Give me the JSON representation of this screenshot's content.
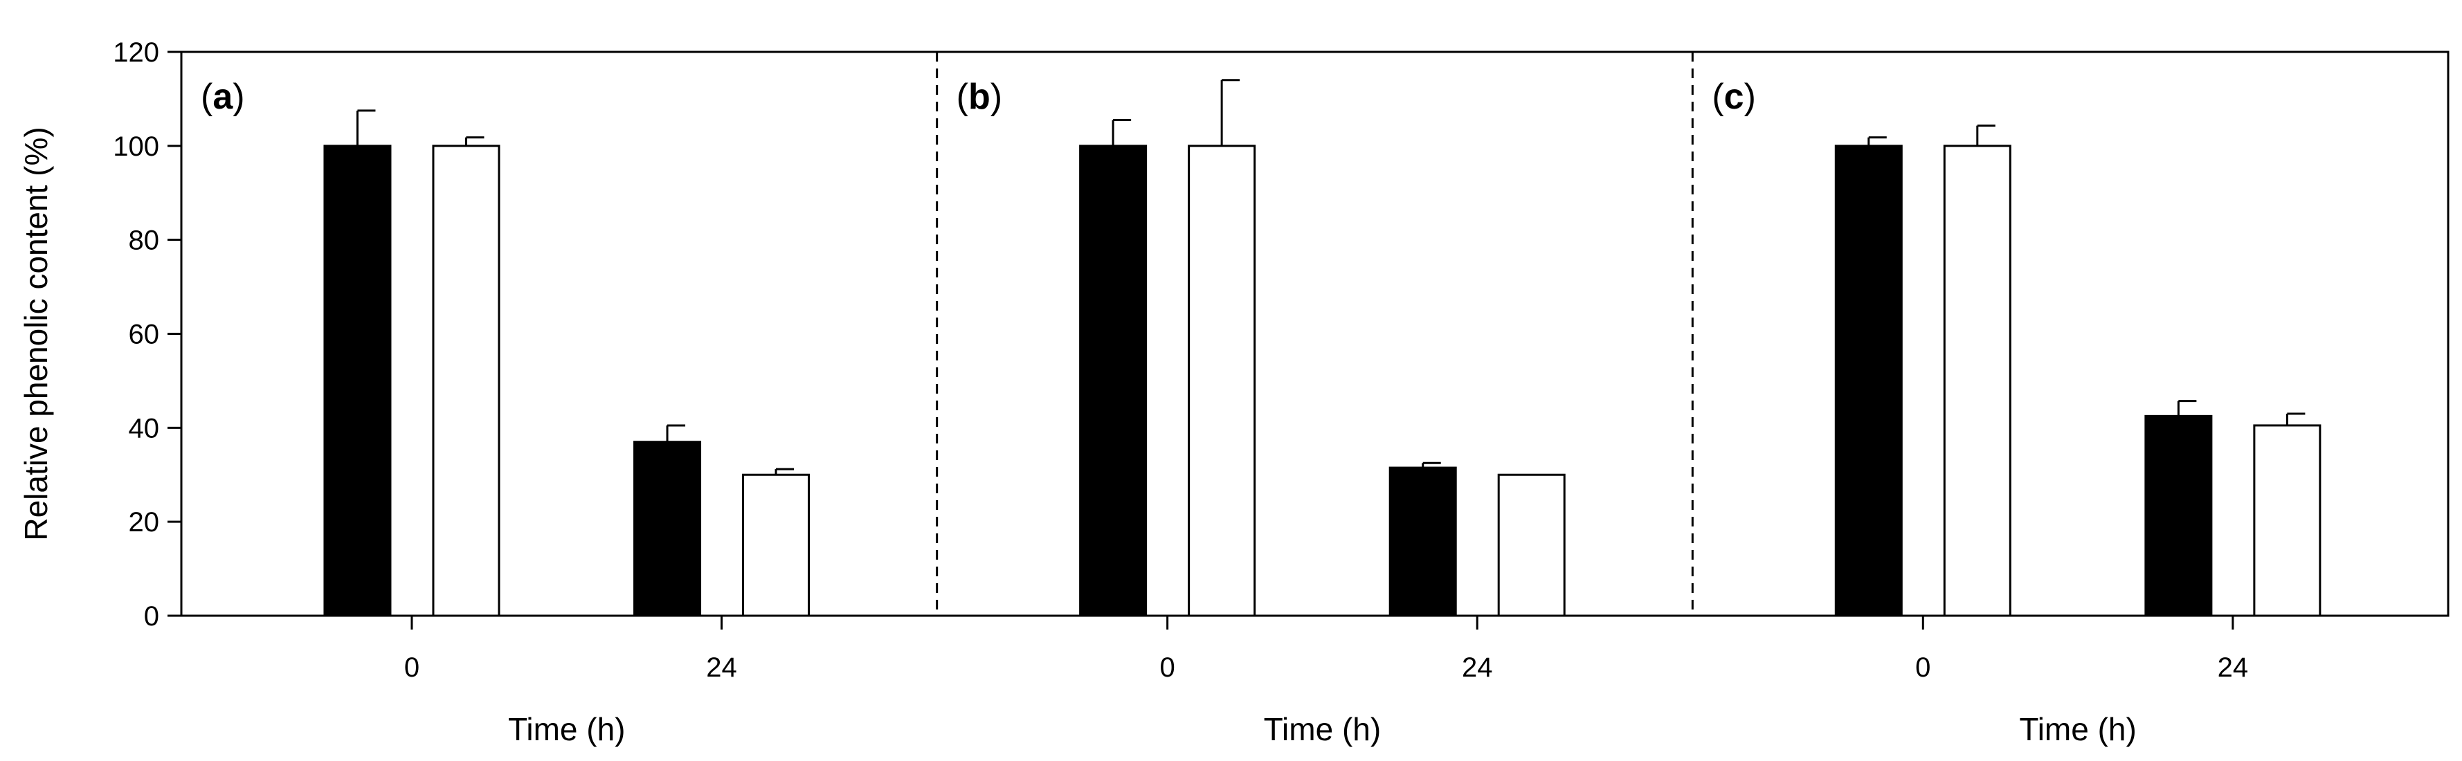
{
  "chart_data": {
    "type": "bar",
    "ylabel": "Relative phenolic content (%)",
    "xlabel": "Time (h)",
    "ylim": [
      0,
      120
    ],
    "yticks": [
      0,
      20,
      40,
      60,
      80,
      100,
      120
    ],
    "categories": [
      "0",
      "24"
    ],
    "series_styles": [
      {
        "fill": "#000000",
        "stroke": "#000000"
      },
      {
        "fill": "#ffffff",
        "stroke": "#000000"
      }
    ],
    "panels": [
      {
        "label": "a",
        "series": [
          {
            "values": [
              100,
              37
            ],
            "errors": [
              7.5,
              3.5
            ]
          },
          {
            "values": [
              100,
              30
            ],
            "errors": [
              1.8,
              1.2
            ]
          }
        ]
      },
      {
        "label": "b",
        "series": [
          {
            "values": [
              100,
              31.5
            ],
            "errors": [
              5.5,
              1.0
            ]
          },
          {
            "values": [
              100,
              30
            ],
            "errors": [
              14,
              0
            ]
          }
        ]
      },
      {
        "label": "c",
        "series": [
          {
            "values": [
              100,
              42.5
            ],
            "errors": [
              1.8,
              3.2
            ]
          },
          {
            "values": [
              100,
              40.5
            ],
            "errors": [
              4.3,
              2.5
            ]
          }
        ]
      }
    ]
  }
}
